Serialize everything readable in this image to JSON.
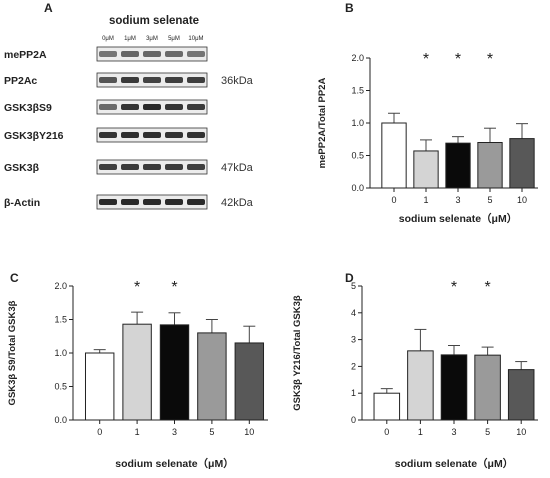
{
  "western_blot": {
    "panel_letter": "A",
    "title": "sodium selenate",
    "concentrations": [
      "0μM",
      "1μM",
      "3μM",
      "5μM",
      "10μM"
    ],
    "rows": [
      {
        "label": "mePP2A",
        "kda": "",
        "intensity": [
          0.55,
          0.62,
          0.62,
          0.6,
          0.55
        ]
      },
      {
        "label": "PP2Ac",
        "kda": "36kDa",
        "intensity": [
          0.7,
          0.82,
          0.78,
          0.8,
          0.8
        ]
      },
      {
        "label": "GSK3βS9",
        "kda": "",
        "intensity": [
          0.6,
          0.85,
          0.9,
          0.85,
          0.82
        ]
      },
      {
        "label": "GSK3βY216",
        "kda": "",
        "intensity": [
          0.85,
          0.88,
          0.88,
          0.86,
          0.86
        ]
      },
      {
        "label": "GSK3β",
        "kda": "47kDa",
        "intensity": [
          0.8,
          0.82,
          0.82,
          0.82,
          0.8
        ]
      },
      {
        "label": "β-Actin",
        "kda": "42kDa",
        "intensity": [
          0.9,
          0.9,
          0.9,
          0.9,
          0.9
        ]
      }
    ]
  },
  "bar_colors": [
    "#ffffff",
    "#d4d4d4",
    "#0a0a0a",
    "#9a9a9a",
    "#585858"
  ],
  "chart_data": [
    {
      "panel": "B",
      "type": "bar",
      "categories": [
        "0",
        "1",
        "3",
        "5",
        "10"
      ],
      "values": [
        1.0,
        0.57,
        0.69,
        0.7,
        0.76
      ],
      "errors": [
        0.15,
        0.17,
        0.1,
        0.22,
        0.23
      ],
      "significance": [
        "",
        "*",
        "*",
        "*",
        ""
      ],
      "xlabel": "sodium selenate（μM）",
      "ylabel": "mePP2A/Total PP2A",
      "ylim": [
        0,
        2.0
      ],
      "yticks": [
        "0.0",
        "0.5",
        "1.0",
        "1.5",
        "2.0"
      ]
    },
    {
      "panel": "C",
      "type": "bar",
      "categories": [
        "0",
        "1",
        "3",
        "5",
        "10"
      ],
      "values": [
        1.0,
        1.43,
        1.42,
        1.3,
        1.15
      ],
      "errors": [
        0.05,
        0.18,
        0.18,
        0.2,
        0.25
      ],
      "significance": [
        "",
        "*",
        "*",
        "",
        ""
      ],
      "xlabel": "sodium selenate（μM）",
      "ylabel": "GSK3β S9/Total GSK3β",
      "ylim": [
        0,
        2.0
      ],
      "yticks": [
        "0.0",
        "0.5",
        "1.0",
        "1.5",
        "2.0"
      ]
    },
    {
      "panel": "D",
      "type": "bar",
      "categories": [
        "0",
        "1",
        "3",
        "5",
        "10"
      ],
      "values": [
        1.0,
        2.58,
        2.43,
        2.42,
        1.88
      ],
      "errors": [
        0.17,
        0.8,
        0.35,
        0.3,
        0.3
      ],
      "significance": [
        "",
        "",
        "*",
        "*",
        ""
      ],
      "xlabel": "sodium selenate（μM）",
      "ylabel": "GSK3β Y216/Total GSK3β",
      "ylim": [
        0,
        5
      ],
      "yticks": [
        "0",
        "1",
        "2",
        "3",
        "4",
        "5"
      ]
    }
  ]
}
